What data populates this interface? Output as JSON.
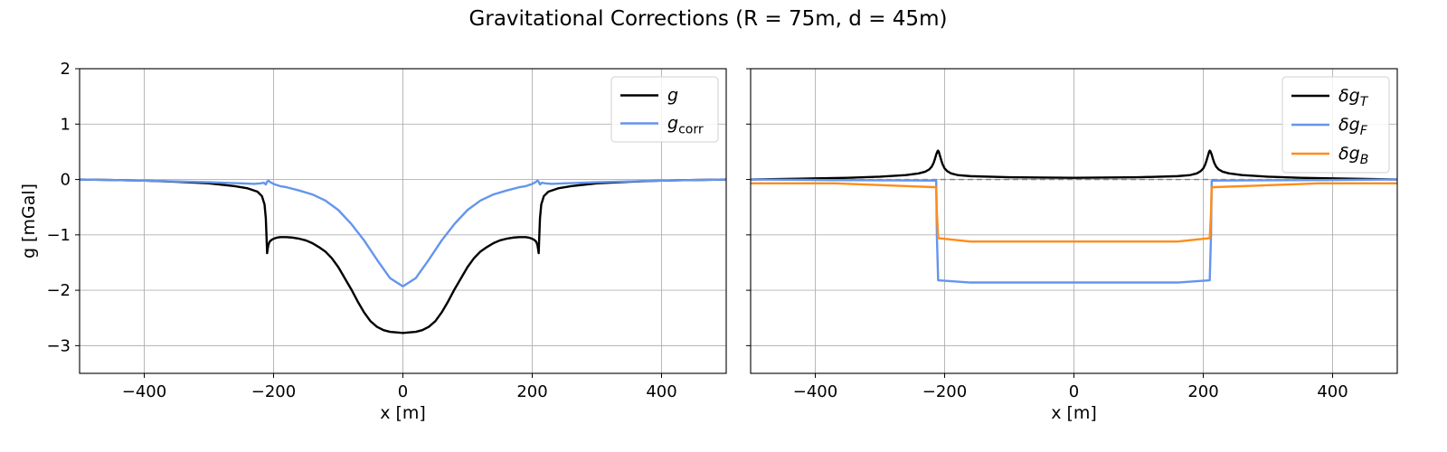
{
  "figure": {
    "title": "Gravitational Corrections (R = 75m, d = 45m)"
  },
  "chart_data": [
    {
      "type": "line",
      "xlabel": "x [m]",
      "ylabel": "g [mGal]",
      "xlim": [
        -500,
        500
      ],
      "ylim": [
        -3.5,
        2
      ],
      "xticks": [
        -400,
        -200,
        0,
        200,
        400
      ],
      "yticks": [
        -3,
        -2,
        -1,
        0,
        1,
        2
      ],
      "grid": true,
      "legend": "top-right",
      "series": [
        {
          "name": "g",
          "name_main": "g",
          "name_sub": "",
          "color": "#000000",
          "x": [
            -500,
            -400,
            -350,
            -300,
            -260,
            -240,
            -225,
            -218,
            -214,
            -212,
            -211,
            -210,
            -209,
            -208,
            -206,
            -203,
            -200,
            -195,
            -190,
            -180,
            -170,
            -160,
            -150,
            -140,
            -130,
            -120,
            -110,
            -100,
            -90,
            -80,
            -70,
            -60,
            -50,
            -40,
            -30,
            -20,
            -10,
            0,
            10,
            20,
            30,
            40,
            50,
            60,
            70,
            80,
            90,
            100,
            110,
            120,
            130,
            140,
            150,
            160,
            170,
            180,
            190,
            195,
            200,
            203,
            206,
            208,
            209,
            210,
            211,
            212,
            214,
            218,
            225,
            240,
            260,
            300,
            350,
            400,
            500
          ],
          "y": [
            0.0,
            -0.02,
            -0.04,
            -0.07,
            -0.12,
            -0.16,
            -0.22,
            -0.3,
            -0.45,
            -0.7,
            -1.0,
            -1.33,
            -1.25,
            -1.18,
            -1.12,
            -1.09,
            -1.07,
            -1.05,
            -1.04,
            -1.04,
            -1.05,
            -1.07,
            -1.1,
            -1.15,
            -1.22,
            -1.3,
            -1.42,
            -1.58,
            -1.78,
            -1.98,
            -2.2,
            -2.4,
            -2.56,
            -2.66,
            -2.72,
            -2.75,
            -2.76,
            -2.77,
            -2.76,
            -2.75,
            -2.72,
            -2.66,
            -2.56,
            -2.4,
            -2.2,
            -1.98,
            -1.78,
            -1.58,
            -1.42,
            -1.3,
            -1.22,
            -1.15,
            -1.1,
            -1.07,
            -1.05,
            -1.04,
            -1.04,
            -1.05,
            -1.07,
            -1.09,
            -1.12,
            -1.18,
            -1.25,
            -1.33,
            -1.0,
            -0.7,
            -0.45,
            -0.3,
            -0.22,
            -0.16,
            -0.12,
            -0.07,
            -0.04,
            -0.02,
            0.0
          ]
        },
        {
          "name": "g_corr",
          "name_main": "g",
          "name_sub": "corr",
          "color": "#6495ed",
          "x": [
            -500,
            -400,
            -300,
            -250,
            -230,
            -220,
            -215,
            -212,
            -210,
            -208,
            -205,
            -200,
            -190,
            -180,
            -160,
            -140,
            -120,
            -100,
            -80,
            -60,
            -40,
            -20,
            0,
            20,
            40,
            60,
            80,
            100,
            120,
            140,
            160,
            180,
            190,
            200,
            205,
            208,
            210,
            212,
            215,
            220,
            230,
            250,
            300,
            400,
            500
          ],
          "y": [
            0.0,
            -0.02,
            -0.05,
            -0.07,
            -0.08,
            -0.07,
            -0.06,
            -0.09,
            -0.04,
            -0.02,
            -0.05,
            -0.08,
            -0.12,
            -0.14,
            -0.2,
            -0.27,
            -0.38,
            -0.55,
            -0.8,
            -1.1,
            -1.45,
            -1.78,
            -1.93,
            -1.78,
            -1.45,
            -1.1,
            -0.8,
            -0.55,
            -0.38,
            -0.27,
            -0.2,
            -0.14,
            -0.12,
            -0.08,
            -0.05,
            -0.02,
            -0.04,
            -0.09,
            -0.06,
            -0.07,
            -0.08,
            -0.07,
            -0.05,
            -0.02,
            0.0
          ]
        }
      ]
    },
    {
      "type": "line",
      "xlabel": "x [m]",
      "ylabel": "",
      "xlim": [
        -500,
        500
      ],
      "ylim": [
        -3.5,
        2
      ],
      "xticks": [
        -400,
        -200,
        0,
        200,
        400
      ],
      "yticks": [
        -3,
        -2,
        -1,
        0,
        1,
        2
      ],
      "show_ytick_labels": false,
      "grid": true,
      "legend": "top-right",
      "reference_line": {
        "y": 0,
        "color": "#808080",
        "style": "dashed"
      },
      "series": [
        {
          "name": "δg_T",
          "name_main": "δg",
          "name_sub": "T",
          "color": "#000000",
          "x": [
            -500,
            -400,
            -350,
            -300,
            -260,
            -240,
            -230,
            -224,
            -220,
            -217,
            -215,
            -213,
            -211,
            -210,
            -209,
            -207,
            -205,
            -203,
            -200,
            -196,
            -190,
            -180,
            -160,
            -100,
            0,
            100,
            160,
            180,
            190,
            196,
            200,
            203,
            205,
            207,
            209,
            210,
            211,
            213,
            215,
            217,
            220,
            224,
            230,
            240,
            260,
            300,
            350,
            400,
            500
          ],
          "y": [
            0.0,
            0.02,
            0.03,
            0.05,
            0.08,
            0.11,
            0.14,
            0.18,
            0.23,
            0.3,
            0.37,
            0.45,
            0.51,
            0.52,
            0.5,
            0.42,
            0.34,
            0.27,
            0.2,
            0.15,
            0.11,
            0.08,
            0.06,
            0.04,
            0.03,
            0.04,
            0.06,
            0.08,
            0.11,
            0.15,
            0.2,
            0.27,
            0.34,
            0.42,
            0.5,
            0.52,
            0.51,
            0.45,
            0.37,
            0.3,
            0.23,
            0.18,
            0.14,
            0.11,
            0.08,
            0.05,
            0.03,
            0.02,
            0.0
          ]
        },
        {
          "name": "δg_F",
          "name_main": "δg",
          "name_sub": "F",
          "color": "#6495ed",
          "x": [
            -500,
            -380,
            -213,
            -212,
            -210,
            -160,
            0,
            160,
            210,
            212,
            213,
            380,
            500
          ],
          "y": [
            0.0,
            -0.01,
            -0.02,
            -1.0,
            -1.82,
            -1.86,
            -1.86,
            -1.86,
            -1.82,
            -1.0,
            -0.02,
            -0.01,
            0.0
          ]
        },
        {
          "name": "δg_B",
          "name_main": "δg",
          "name_sub": "B",
          "color": "#ff8c1a",
          "x": [
            -500,
            -370,
            -213,
            -212,
            -210,
            -160,
            0,
            160,
            210,
            212,
            213,
            380,
            500
          ],
          "y": [
            -0.07,
            -0.07,
            -0.14,
            -0.6,
            -1.06,
            -1.12,
            -1.12,
            -1.12,
            -1.06,
            -0.6,
            -0.14,
            -0.07,
            -0.07
          ]
        }
      ]
    }
  ]
}
